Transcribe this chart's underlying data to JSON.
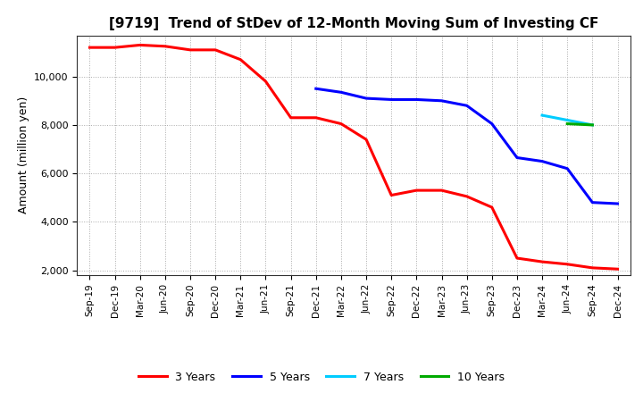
{
  "title": "[9719]  Trend of StDev of 12-Month Moving Sum of Investing CF",
  "ylabel": "Amount (million yen)",
  "background_color": "#ffffff",
  "grid_color": "#aaaaaa",
  "ylim": [
    1800,
    11700
  ],
  "yticks": [
    2000,
    4000,
    6000,
    8000,
    10000
  ],
  "series_3y": {
    "label": "3 Years",
    "color": "#ff0000",
    "x": [
      "Sep-19",
      "Dec-19",
      "Mar-20",
      "Jun-20",
      "Sep-20",
      "Dec-20",
      "Mar-21",
      "Jun-21",
      "Sep-21",
      "Dec-21",
      "Mar-22",
      "Jun-22",
      "Sep-22",
      "Dec-22",
      "Mar-23",
      "Jun-23",
      "Sep-23",
      "Dec-23",
      "Mar-24",
      "Jun-24",
      "Sep-24",
      "Dec-24"
    ],
    "y": [
      11200,
      11200,
      11300,
      11250,
      11100,
      11100,
      10700,
      9800,
      8300,
      8300,
      8050,
      7400,
      5100,
      5300,
      5300,
      5050,
      4600,
      2500,
      2350,
      2250,
      2100,
      2050
    ]
  },
  "series_5y": {
    "label": "5 Years",
    "color": "#0000ff",
    "x": [
      "Dec-21",
      "Mar-22",
      "Jun-22",
      "Sep-22",
      "Dec-22",
      "Mar-23",
      "Jun-23",
      "Sep-23",
      "Dec-23",
      "Mar-24",
      "Jun-24",
      "Sep-24",
      "Dec-24"
    ],
    "y": [
      9500,
      9350,
      9100,
      9050,
      9050,
      9000,
      8800,
      8050,
      6650,
      6500,
      6200,
      4800,
      4750
    ]
  },
  "series_7y": {
    "label": "7 Years",
    "color": "#00ccff",
    "x": [
      "Mar-24",
      "Jun-24",
      "Sep-24"
    ],
    "y": [
      8400,
      8200,
      8000
    ]
  },
  "series_10y": {
    "label": "10 Years",
    "color": "#00aa00",
    "x": [
      "Jun-24",
      "Sep-24"
    ],
    "y": [
      8050,
      8000
    ]
  },
  "x_labels": [
    "Sep-19",
    "Dec-19",
    "Mar-20",
    "Jun-20",
    "Sep-20",
    "Dec-20",
    "Mar-21",
    "Jun-21",
    "Sep-21",
    "Dec-21",
    "Mar-22",
    "Jun-22",
    "Sep-22",
    "Dec-22",
    "Mar-23",
    "Jun-23",
    "Sep-23",
    "Dec-23",
    "Mar-24",
    "Jun-24",
    "Sep-24",
    "Dec-24"
  ]
}
